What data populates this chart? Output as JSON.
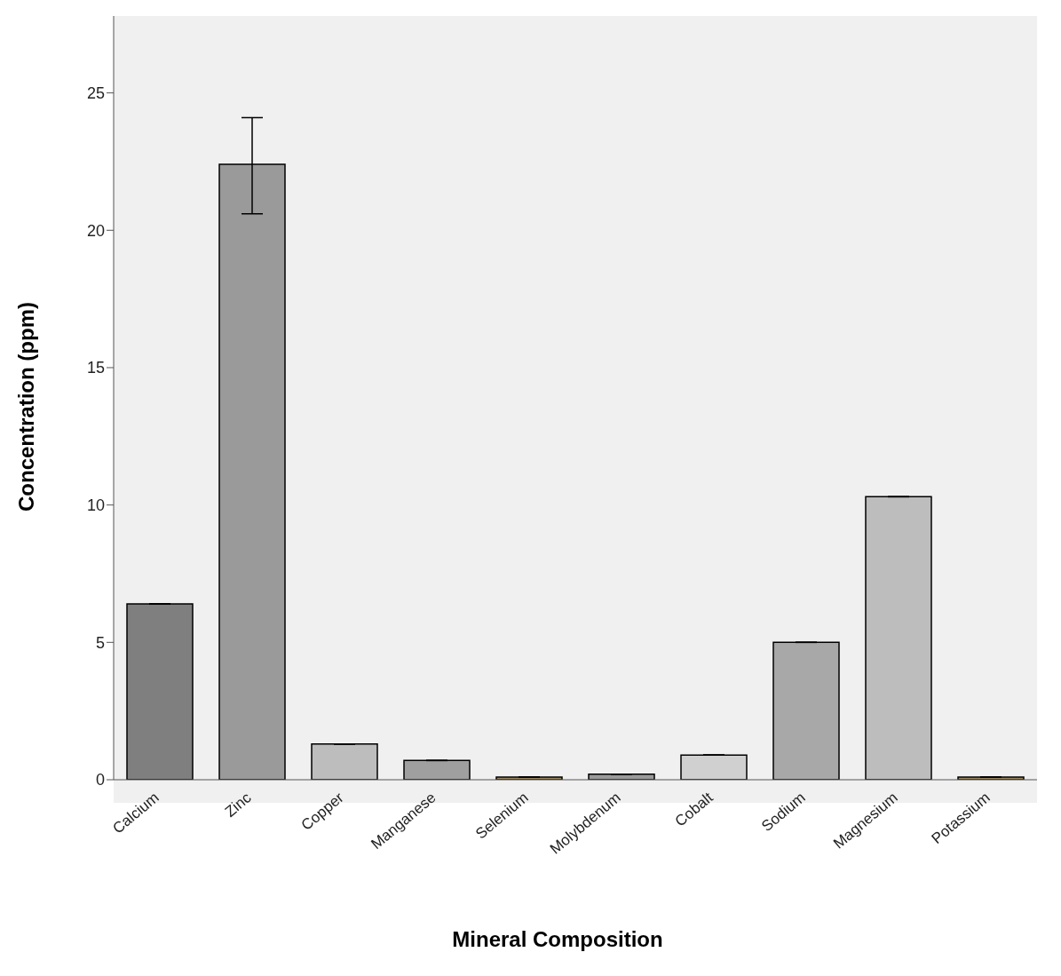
{
  "chart_data": {
    "type": "bar",
    "xlabel": "Mineral Composition",
    "ylabel": "Concentration (ppm)",
    "categories": [
      "Calcium",
      "Zinc",
      "Copper",
      "Manganese",
      "Selenium",
      "Molybdenum",
      "Cobalt",
      "Sodium",
      "Magnesium",
      "Potassium"
    ],
    "values": [
      6.4,
      22.4,
      1.3,
      0.7,
      0.1,
      0.2,
      0.9,
      5.0,
      10.3,
      0.1
    ],
    "errors": [
      null,
      [
        20.6,
        24.1
      ],
      null,
      null,
      null,
      null,
      null,
      null,
      null,
      null
    ],
    "colors": [
      "#7f7f7f",
      "#9a9a9a",
      "#bdbdbd",
      "#9f9f9f",
      "#a08a60",
      "#9a9a9a",
      "#d0d0d0",
      "#a8a8a8",
      "#bdbdbd",
      "#a08a60"
    ],
    "ylim": [
      0,
      27.8
    ],
    "yticks": [
      0,
      5,
      10,
      15,
      20,
      25
    ]
  }
}
